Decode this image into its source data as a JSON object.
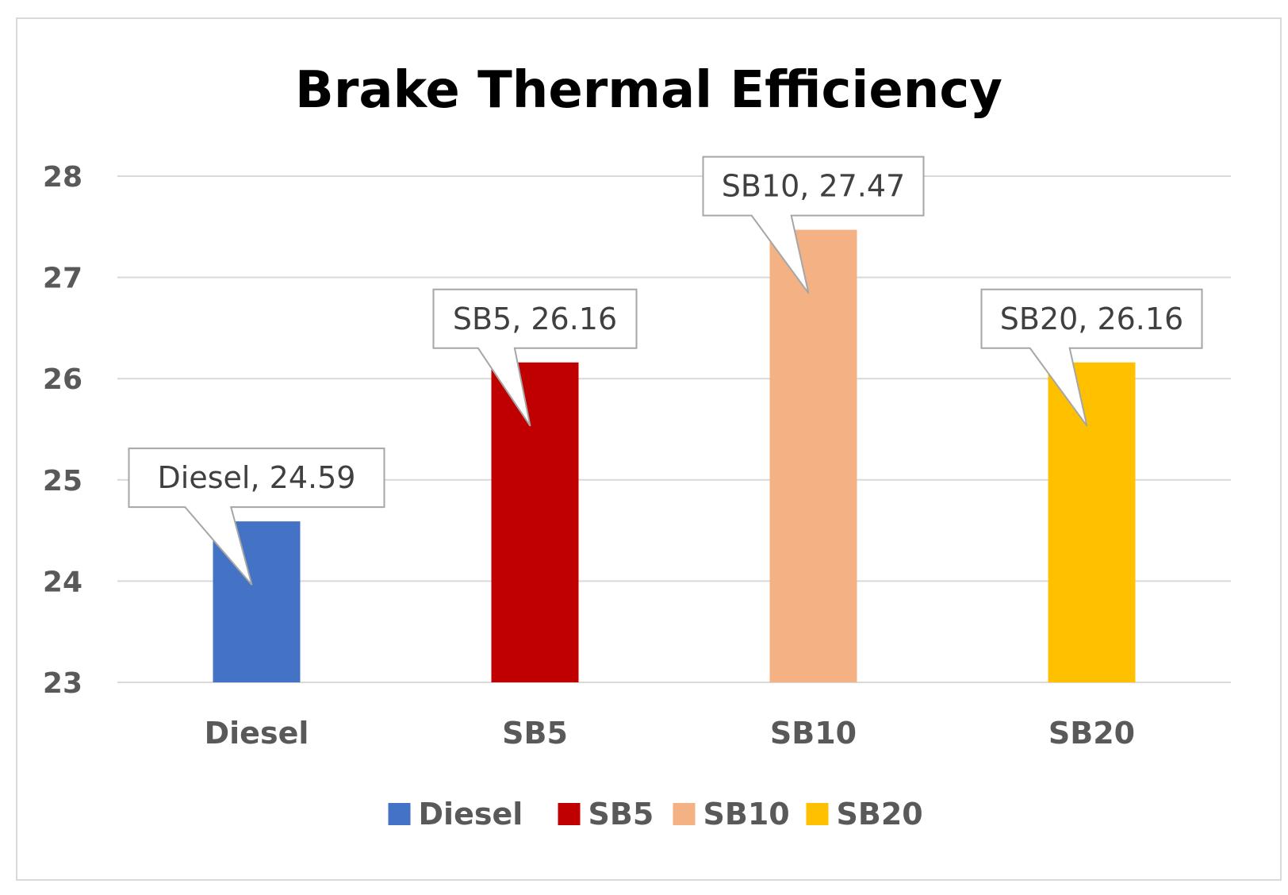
{
  "chart_data": {
    "type": "bar",
    "title": "Brake Thermal Efficiency",
    "xlabel": "",
    "ylabel": "",
    "ylim": [
      23,
      28
    ],
    "yticks": [
      23,
      24,
      25,
      26,
      27,
      28
    ],
    "grid": true,
    "categories": [
      "Diesel",
      "SB5",
      "SB10",
      "SB20"
    ],
    "values": [
      24.59,
      26.16,
      27.47,
      26.16
    ],
    "colors": [
      "#4472c4",
      "#c00000",
      "#f4b183",
      "#ffc000"
    ],
    "data_labels": [
      "Diesel, 24.59",
      "SB5, 26.16",
      "SB10, 27.47",
      "SB20, 26.16"
    ],
    "legend": {
      "placement": "bottom",
      "entries": [
        "Diesel",
        "SB5",
        "SB10",
        "SB20"
      ]
    }
  }
}
